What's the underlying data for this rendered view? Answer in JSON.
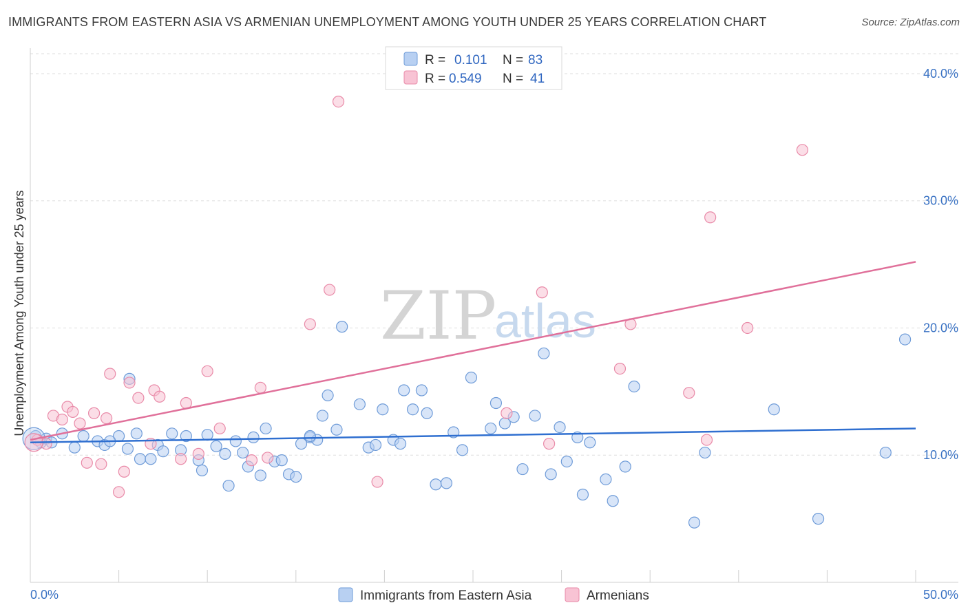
{
  "header": {
    "title": "IMMIGRANTS FROM EASTERN ASIA VS ARMENIAN UNEMPLOYMENT AMONG YOUTH UNDER 25 YEARS CORRELATION CHART",
    "source": "Source: ZipAtlas.com"
  },
  "watermark": {
    "zip": "ZIP",
    "atlas": "atlas"
  },
  "legend_top": {
    "rows": [
      {
        "r_label": "R =",
        "r_value": "0.101",
        "n_label": "N =",
        "n_value": "83"
      },
      {
        "r_label": "R =",
        "r_value": "0.549",
        "n_label": "N =",
        "n_value": "41"
      }
    ]
  },
  "legend_bottom": {
    "items": [
      {
        "label": "Immigrants from Eastern Asia"
      },
      {
        "label": "Armenians"
      }
    ]
  },
  "colors": {
    "blue_fill": "#b8d0f2",
    "blue_stroke": "#6e9bd8",
    "blue_line": "#2f6fd0",
    "pink_fill": "#f8c3d4",
    "pink_stroke": "#e98aa8",
    "pink_line": "#e0709a",
    "grid": "#dddddd",
    "axis_label": "#3b73c4"
  },
  "chart_data": {
    "type": "scatter",
    "title": "IMMIGRANTS FROM EASTERN ASIA VS ARMENIAN UNEMPLOYMENT AMONG YOUTH UNDER 25 YEARS CORRELATION CHART",
    "xlabel": "",
    "ylabel": "Unemployment Among Youth under 25 years",
    "xlim": [
      0,
      50
    ],
    "ylim": [
      0,
      42
    ],
    "x_tick_labels": [
      "0.0%",
      "50.0%"
    ],
    "y_ticks": [
      10,
      20,
      30,
      40
    ],
    "y_tick_labels": [
      "10.0%",
      "20.0%",
      "30.0%",
      "40.0%"
    ],
    "grid": true,
    "legend_position": "top-center",
    "series": [
      {
        "name": "Immigrants from Eastern Asia",
        "r": 0.101,
        "n": 83,
        "trend": [
          [
            0,
            11.0
          ],
          [
            50,
            12.1
          ]
        ],
        "points": [
          [
            0.3,
            11.5
          ],
          [
            0.6,
            11.0
          ],
          [
            0.9,
            11.3
          ],
          [
            1.2,
            11.0
          ],
          [
            1.8,
            11.7
          ],
          [
            2.5,
            10.6
          ],
          [
            3.0,
            11.5
          ],
          [
            3.8,
            11.1
          ],
          [
            4.2,
            10.8
          ],
          [
            5.0,
            11.5
          ],
          [
            5.5,
            10.5
          ],
          [
            5.6,
            16.0
          ],
          [
            6.0,
            11.7
          ],
          [
            6.2,
            9.7
          ],
          [
            6.8,
            9.7
          ],
          [
            7.2,
            10.8
          ],
          [
            7.5,
            10.3
          ],
          [
            8.0,
            11.7
          ],
          [
            8.5,
            10.4
          ],
          [
            8.8,
            11.5
          ],
          [
            9.5,
            9.6
          ],
          [
            9.7,
            8.8
          ],
          [
            10.0,
            11.6
          ],
          [
            10.5,
            10.7
          ],
          [
            11.0,
            10.1
          ],
          [
            11.2,
            7.6
          ],
          [
            11.6,
            11.1
          ],
          [
            12.0,
            10.2
          ],
          [
            12.3,
            9.1
          ],
          [
            12.6,
            11.4
          ],
          [
            13.0,
            8.4
          ],
          [
            13.3,
            12.1
          ],
          [
            13.8,
            9.5
          ],
          [
            14.2,
            9.6
          ],
          [
            14.6,
            8.5
          ],
          [
            15.0,
            8.3
          ],
          [
            15.3,
            10.9
          ],
          [
            15.8,
            11.4
          ],
          [
            16.2,
            11.2
          ],
          [
            16.5,
            13.1
          ],
          [
            16.8,
            14.7
          ],
          [
            17.3,
            12.0
          ],
          [
            17.6,
            20.1
          ],
          [
            18.6,
            14.0
          ],
          [
            19.1,
            10.6
          ],
          [
            19.5,
            10.8
          ],
          [
            19.9,
            13.6
          ],
          [
            20.5,
            11.2
          ],
          [
            20.9,
            10.9
          ],
          [
            21.1,
            15.1
          ],
          [
            21.6,
            13.6
          ],
          [
            22.1,
            15.1
          ],
          [
            22.4,
            13.3
          ],
          [
            22.9,
            7.7
          ],
          [
            23.5,
            7.8
          ],
          [
            23.9,
            11.8
          ],
          [
            24.4,
            10.4
          ],
          [
            24.9,
            16.1
          ],
          [
            26.0,
            12.1
          ],
          [
            26.3,
            14.1
          ],
          [
            26.8,
            12.5
          ],
          [
            27.3,
            13.0
          ],
          [
            27.8,
            8.9
          ],
          [
            28.5,
            13.1
          ],
          [
            29.0,
            18.0
          ],
          [
            29.4,
            8.5
          ],
          [
            29.9,
            12.2
          ],
          [
            30.3,
            9.5
          ],
          [
            30.9,
            11.4
          ],
          [
            31.2,
            6.9
          ],
          [
            31.6,
            11.0
          ],
          [
            32.5,
            8.1
          ],
          [
            32.9,
            6.4
          ],
          [
            33.6,
            9.1
          ],
          [
            34.1,
            15.4
          ],
          [
            37.5,
            4.7
          ],
          [
            38.1,
            10.2
          ],
          [
            42.0,
            13.6
          ],
          [
            44.5,
            5.0
          ],
          [
            48.3,
            10.2
          ],
          [
            49.4,
            19.1
          ],
          [
            4.5,
            11.1
          ],
          [
            15.8,
            11.5
          ]
        ]
      },
      {
        "name": "Armenians",
        "r": 0.549,
        "n": 41,
        "trend": [
          [
            0,
            11.2
          ],
          [
            50,
            25.2
          ]
        ],
        "points": [
          [
            0.4,
            11.2
          ],
          [
            0.9,
            10.9
          ],
          [
            1.3,
            13.1
          ],
          [
            1.8,
            12.8
          ],
          [
            2.1,
            13.8
          ],
          [
            2.4,
            13.4
          ],
          [
            2.8,
            12.5
          ],
          [
            3.2,
            9.4
          ],
          [
            3.6,
            13.3
          ],
          [
            4.0,
            9.3
          ],
          [
            4.3,
            12.9
          ],
          [
            4.5,
            16.4
          ],
          [
            5.0,
            7.1
          ],
          [
            5.3,
            8.7
          ],
          [
            5.6,
            15.7
          ],
          [
            6.1,
            14.5
          ],
          [
            6.8,
            10.9
          ],
          [
            7.0,
            15.1
          ],
          [
            7.3,
            14.6
          ],
          [
            8.5,
            9.7
          ],
          [
            8.8,
            14.1
          ],
          [
            9.5,
            10.1
          ],
          [
            10.0,
            16.6
          ],
          [
            10.7,
            12.1
          ],
          [
            12.5,
            9.6
          ],
          [
            13.0,
            15.3
          ],
          [
            13.4,
            9.8
          ],
          [
            15.8,
            20.3
          ],
          [
            16.9,
            23.0
          ],
          [
            17.4,
            37.8
          ],
          [
            19.6,
            7.9
          ],
          [
            26.9,
            13.3
          ],
          [
            28.9,
            22.8
          ],
          [
            29.3,
            10.9
          ],
          [
            33.3,
            16.8
          ],
          [
            33.9,
            20.3
          ],
          [
            37.2,
            14.9
          ],
          [
            38.2,
            11.2
          ],
          [
            38.4,
            28.7
          ],
          [
            40.5,
            20.0
          ],
          [
            43.6,
            34.0
          ]
        ]
      }
    ]
  }
}
